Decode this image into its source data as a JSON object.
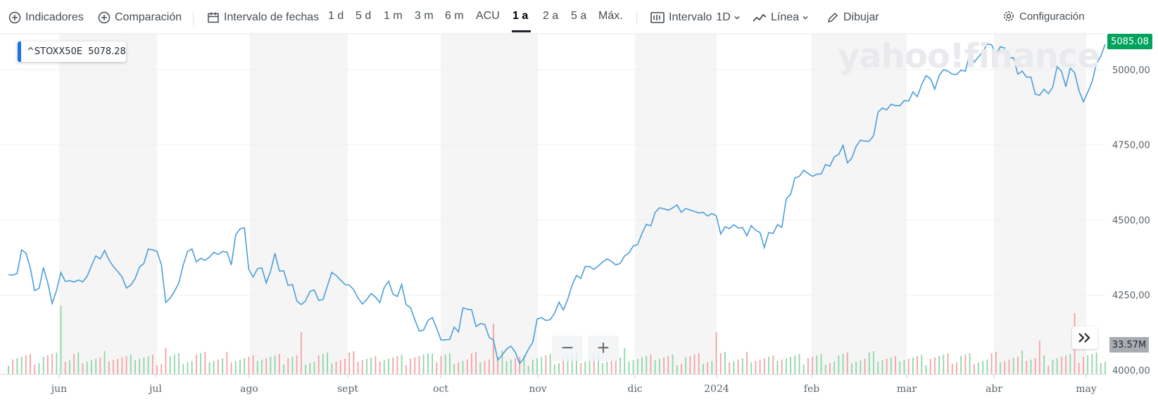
{
  "toolbar": {
    "indicators": "Indicadores",
    "comparison": "Comparación",
    "date_range": "Intervalo de fechas",
    "ranges": [
      "1 d",
      "5 d",
      "1 m",
      "3 m",
      "6 m",
      "ACU",
      "1 a",
      "2 a",
      "5 a",
      "Máx."
    ],
    "active_range": "1 a",
    "interval_label": "Intervalo",
    "interval_value": "1D",
    "chart_type": "Línea",
    "draw": "Dibujar",
    "settings": "Configuración"
  },
  "legend": {
    "symbol": "^STOXX50E",
    "value": "5078.28"
  },
  "watermark": "yahoo!finance",
  "last_price": "5085.08",
  "volume_tag": "33.57M",
  "zoom": {
    "minus": "−",
    "plus": "+"
  },
  "colors": {
    "line": "#4a9fd8",
    "up": "#8fd6a8",
    "down": "#f4a3a3",
    "shade": "#f5f5f5",
    "price_tag": "#00a35c"
  },
  "icons": [
    "plus-circle-icon",
    "calendar-icon",
    "candle-icon",
    "line-chart-icon",
    "pencil-icon",
    "gear-icon",
    "chevron-down-icon",
    "double-chevron-right-icon"
  ],
  "chart_data": {
    "type": "line",
    "title": "",
    "series": [
      {
        "name": "^STOXX50E",
        "values": [
          4318,
          4316,
          4322,
          4400,
          4390,
          4340,
          4265,
          4272,
          4341,
          4290,
          4222,
          4265,
          4325,
          4295,
          4298,
          4293,
          4300,
          4294,
          4312,
          4347,
          4380,
          4370,
          4398,
          4367,
          4345,
          4328,
          4310,
          4273,
          4283,
          4305,
          4343,
          4355,
          4403,
          4400,
          4395,
          4350,
          4225,
          4240,
          4262,
          4290,
          4350,
          4395,
          4403,
          4360,
          4372,
          4365,
          4376,
          4392,
          4385,
          4395,
          4393,
          4350,
          4450,
          4470,
          4474,
          4335,
          4310,
          4338,
          4340,
          4290,
          4330,
          4389,
          4330,
          4330,
          4282,
          4285,
          4230,
          4218,
          4230,
          4262,
          4267,
          4232,
          4235,
          4280,
          4325,
          4315,
          4300,
          4285,
          4283,
          4268,
          4240,
          4220,
          4235,
          4255,
          4243,
          4225,
          4275,
          4296,
          4253,
          4245,
          4285,
          4218,
          4208,
          4168,
          4130,
          4133,
          4165,
          4175,
          4139,
          4100,
          4101,
          4102,
          4143,
          4127,
          4207,
          4203,
          4201,
          4145,
          4155,
          4152,
          4109,
          4100,
          4033,
          4050,
          4070,
          4080,
          4060,
          4022,
          4040,
          4070,
          4093,
          4170,
          4175,
          4165,
          4168,
          4190,
          4226,
          4200,
          4236,
          4283,
          4315,
          4305,
          4345,
          4345,
          4335,
          4347,
          4360,
          4370,
          4362,
          4350,
          4355,
          4380,
          4390,
          4413,
          4418,
          4455,
          4485,
          4480,
          4525,
          4540,
          4537,
          4532,
          4540,
          4550,
          4525,
          4538,
          4533,
          4528,
          4523,
          4525,
          4513,
          4521,
          4513,
          4453,
          4477,
          4471,
          4484,
          4473,
          4475,
          4447,
          4481,
          4465,
          4458,
          4408,
          4458,
          4455,
          4484,
          4475,
          4570,
          4585,
          4640,
          4645,
          4665,
          4655,
          4645,
          4652,
          4653,
          4684,
          4679,
          4710,
          4718,
          4748,
          4690,
          4705,
          4745,
          4765,
          4762,
          4762,
          4780,
          4858,
          4872,
          4866,
          4885,
          4880,
          4880,
          4897,
          4895,
          4926,
          4910,
          4950,
          4980,
          4970,
          4935,
          4980,
          5000,
          4995,
          4985,
          4984,
          4998,
          4995,
          5055,
          5025,
          5042,
          5060,
          5085,
          5083,
          5048,
          5076,
          5072,
          5038,
          5040,
          4985,
          4995,
          4975,
          4975,
          4918,
          4915,
          4935,
          4920,
          4942,
          5010,
          4995,
          4943,
          5005,
          4990,
          4930,
          4893,
          4925,
          4960,
          5020,
          5045,
          5085
        ]
      }
    ],
    "volume": {
      "name": "Volumen",
      "unit": "M",
      "last": 33.57
    },
    "x_tick_labels": [
      "jun",
      "jul",
      "ago",
      "sept",
      "oct",
      "nov",
      "dic",
      "2024",
      "feb",
      "mar",
      "abr",
      "may"
    ],
    "y_tick_labels": [
      "4000,00",
      "4250,00",
      "4500,00",
      "4750,00",
      "5000,00"
    ],
    "ylim": [
      4000,
      5110
    ],
    "grid": true,
    "legend_position": "top-left"
  }
}
